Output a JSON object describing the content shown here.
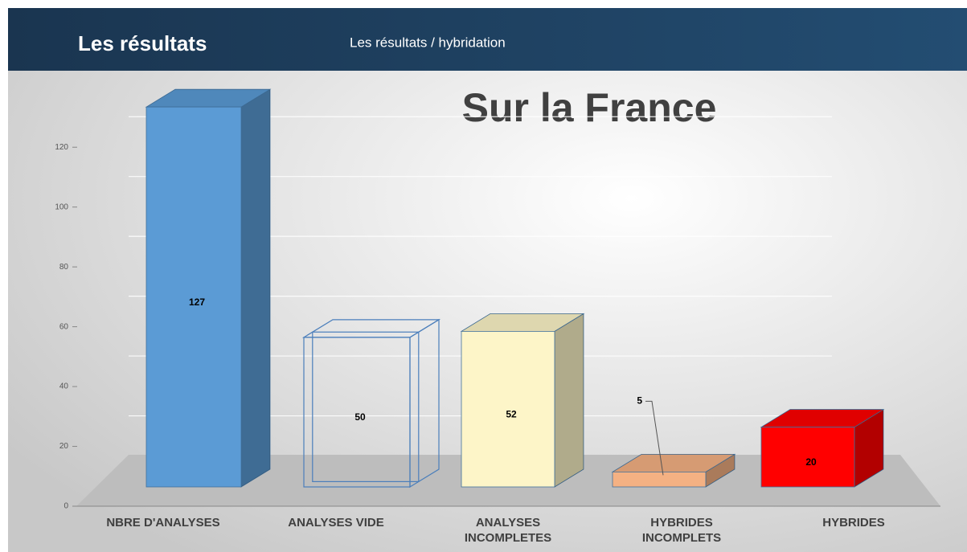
{
  "header": {
    "title": "Les résultats",
    "breadcrumb": "Les résultats / hybridation"
  },
  "chart_data": {
    "type": "bar3d",
    "title": "Sur la France",
    "categories": [
      "NBRE D'ANALYSES",
      "ANALYSES VIDE",
      "ANALYSES INCOMPLETES",
      "HYBRIDES INCOMPLETS",
      "HYBRIDES"
    ],
    "values": [
      127,
      50,
      52,
      5,
      20
    ],
    "colors": [
      "#5b9bd5",
      "none",
      "#fdf5c8",
      "#f4b183",
      "#ff0000"
    ],
    "ylim": [
      0,
      130
    ],
    "yticks": [
      0,
      20,
      40,
      60,
      80,
      100,
      120
    ],
    "grid": true
  }
}
